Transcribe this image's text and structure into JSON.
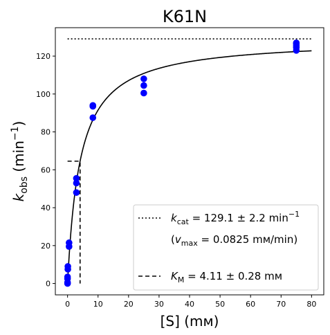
{
  "chart_data": {
    "type": "scatter",
    "title": "K61N",
    "xlabel": "[S] (mᴍ)",
    "ylabel": "kobs (min−1)",
    "xlim": [
      -4,
      84
    ],
    "ylim": [
      -6,
      135
    ],
    "x_ticks": [
      0,
      10,
      20,
      30,
      40,
      50,
      60,
      70,
      80
    ],
    "y_ticks": [
      0,
      20,
      40,
      60,
      80,
      100,
      120
    ],
    "grid": false,
    "legend_position": "lower-right",
    "series": [
      {
        "color": "#0000ff",
        "points": [
          [
            0,
            0
          ],
          [
            0,
            0.5
          ],
          [
            0,
            2.5
          ],
          [
            0,
            3.5
          ],
          [
            0.1,
            7.5
          ],
          [
            0.1,
            9
          ],
          [
            0.5,
            19.5
          ],
          [
            0.5,
            21.5
          ],
          [
            2.9,
            48
          ],
          [
            2.9,
            53
          ],
          [
            2.9,
            55.5
          ],
          [
            8.3,
            87.5
          ],
          [
            8.3,
            93.5
          ],
          [
            8.3,
            94
          ],
          [
            25,
            100.5
          ],
          [
            25,
            104.5
          ],
          [
            25,
            108
          ],
          [
            75,
            123
          ],
          [
            75,
            124.5
          ],
          [
            75,
            125.5
          ],
          [
            75,
            126.5
          ],
          [
            75,
            127
          ]
        ]
      }
    ],
    "fit": {
      "model": "michaelis-menten",
      "kcat": 129.1,
      "km": 4.11,
      "x_range": [
        0,
        80
      ],
      "color": "#000000"
    },
    "kcat_line": {
      "y": 129.1,
      "x_range": [
        0,
        80
      ]
    },
    "km_line": {
      "x": 4.11,
      "y_top": 64.55,
      "x_start": 0
    },
    "legend": {
      "kcat_label": "kcat = 129.1 ± 2.2 min−1",
      "vmax_label": "(vmax = 0.0825 mᴍ/min)",
      "km_label": "KM = 4.11 ± 0.28 mᴍ"
    }
  }
}
